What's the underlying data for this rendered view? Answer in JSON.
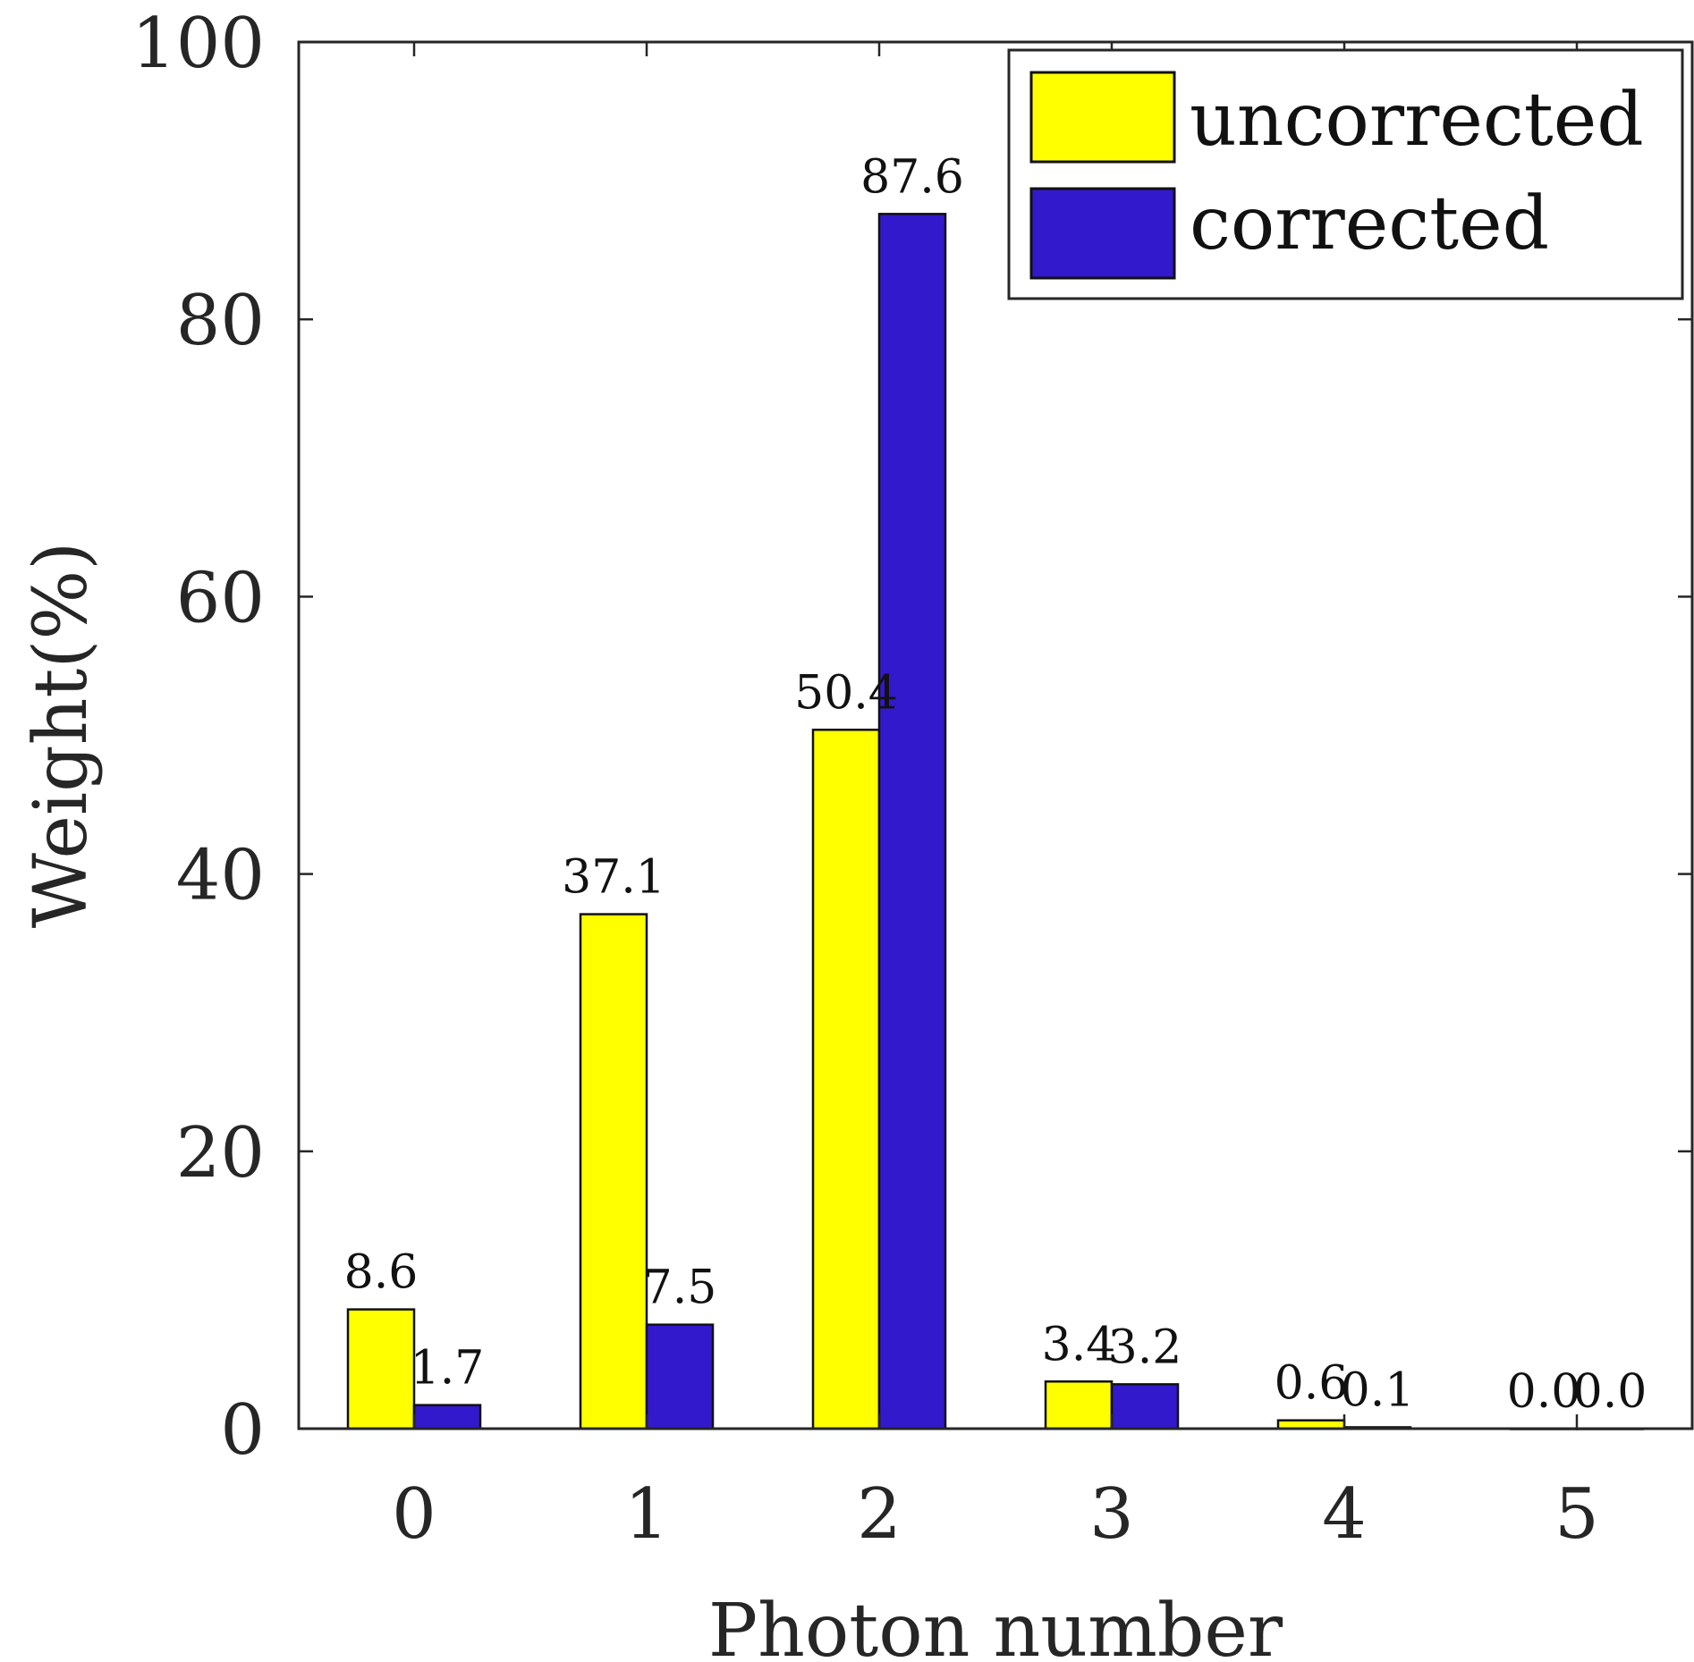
{
  "chart_data": {
    "type": "bar",
    "title": "",
    "xlabel": "Photon number",
    "ylabel": "Weight(%)",
    "categories": [
      "0",
      "1",
      "2",
      "3",
      "4",
      "5"
    ],
    "ylim": [
      0,
      100
    ],
    "yticks": [
      0,
      20,
      40,
      60,
      80,
      100
    ],
    "grid": false,
    "legend_position": "top-right",
    "series": [
      {
        "name": "uncorrected",
        "color": "#ffff00",
        "values": [
          8.6,
          37.1,
          50.4,
          3.4,
          0.6,
          0.0
        ],
        "labels": [
          "8.6",
          "37.1",
          "50.4",
          "3.4",
          "0.6",
          "0.0"
        ]
      },
      {
        "name": "corrected",
        "color": "#3319cc",
        "values": [
          1.7,
          7.5,
          87.6,
          3.2,
          0.1,
          0.0
        ],
        "labels": [
          "1.7",
          "7.5",
          "87.6",
          "3.2",
          "0.1",
          "0.0"
        ]
      }
    ]
  }
}
